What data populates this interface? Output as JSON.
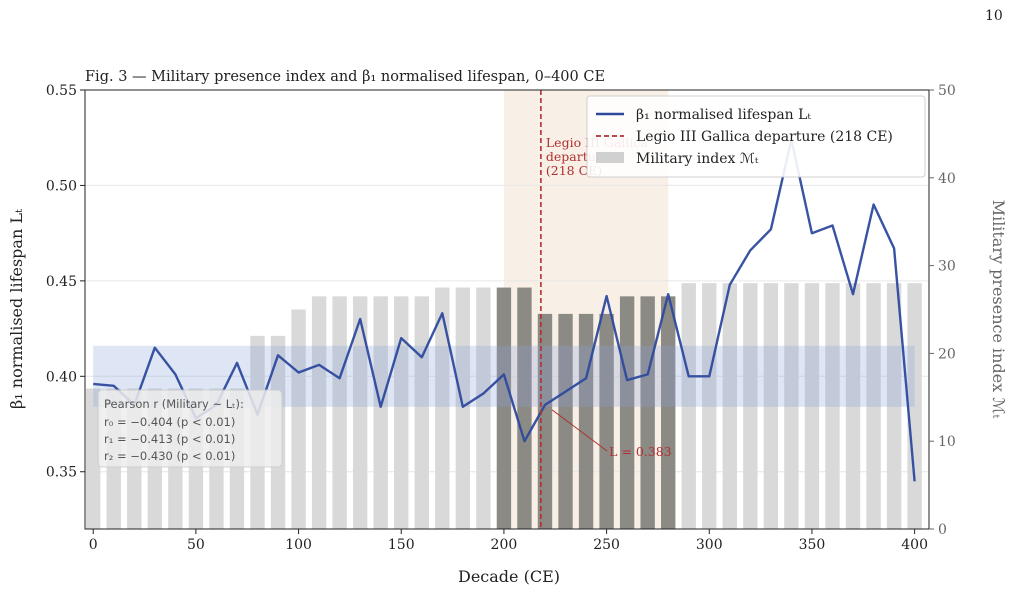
{
  "page_number": "10",
  "chart_data": {
    "type": "line",
    "title": "Fig. 3 — Military presence index and β₁ normalised lifespan, 0–400 CE",
    "xlabel": "Decade (CE)",
    "ylabel": "β₁ normalised lifespan Lₜ",
    "ylabel_right": "Military presence index ℳₜ",
    "xlim": [
      -4,
      407
    ],
    "ylim": [
      0.32,
      0.55
    ],
    "ylim_right": [
      0,
      50
    ],
    "xticks": [
      0,
      50,
      100,
      150,
      200,
      250,
      300,
      350,
      400
    ],
    "yticks": [
      "0.35",
      "0.40",
      "0.45",
      "0.50",
      "0.55"
    ],
    "yticks_right": [
      0,
      10,
      20,
      30,
      40,
      50
    ],
    "grid": "horizontal",
    "legend_position": "top-right",
    "highlight_window": [
      200,
      280
    ],
    "highlight_band": [
      0.384,
      0.416
    ],
    "series": [
      {
        "name": "β₁ normalised lifespan Lₜ",
        "kind": "line",
        "color": "#2e4a9e",
        "x": [
          0,
          10,
          20,
          30,
          40,
          50,
          60,
          70,
          80,
          90,
          100,
          110,
          120,
          130,
          140,
          150,
          160,
          170,
          180,
          190,
          200,
          210,
          220,
          230,
          240,
          250,
          260,
          270,
          280,
          290,
          300,
          310,
          320,
          330,
          340,
          350,
          360,
          370,
          380,
          390,
          400
        ],
        "y": [
          0.396,
          0.395,
          0.385,
          0.415,
          0.401,
          0.378,
          0.385,
          0.407,
          0.38,
          0.411,
          0.402,
          0.406,
          0.399,
          0.43,
          0.384,
          0.42,
          0.41,
          0.433,
          0.384,
          0.391,
          0.401,
          0.366,
          0.385,
          0.392,
          0.399,
          0.442,
          0.398,
          0.401,
          0.443,
          0.4,
          0.4,
          0.448,
          0.466,
          0.477,
          0.524,
          0.475,
          0.479,
          0.443,
          0.49,
          0.467,
          0.345
        ]
      },
      {
        "name": "Military index ℳₜ",
        "kind": "bar",
        "color": "#d9d9d9",
        "highlight_color": "#8c8a85",
        "x": [
          0,
          10,
          20,
          30,
          40,
          50,
          60,
          70,
          80,
          90,
          100,
          110,
          120,
          130,
          140,
          150,
          160,
          170,
          180,
          190,
          200,
          210,
          220,
          230,
          240,
          250,
          260,
          270,
          280,
          290,
          300,
          310,
          320,
          330,
          340,
          350,
          360,
          370,
          380,
          390,
          400
        ],
        "values": [
          16,
          16,
          16,
          16,
          16,
          16,
          16,
          16,
          22,
          22,
          25,
          26.5,
          26.5,
          26.5,
          26.5,
          26.5,
          26.5,
          27.5,
          27.5,
          27.5,
          27.5,
          27.5,
          24.5,
          24.5,
          24.5,
          24.5,
          26.5,
          26.5,
          26.5,
          28,
          28,
          28,
          28,
          28,
          28,
          28,
          28,
          28,
          28,
          28,
          28
        ]
      }
    ],
    "event": {
      "name": "Legio III Gallica departure (218 CE)",
      "x": 218,
      "color": "#b03030",
      "label_lines": [
        "Legio III Gallica",
        "departure",
        "(218 CE)"
      ]
    },
    "annotation": {
      "text": "L = 0.383",
      "x": 222,
      "y": 0.384
    },
    "pearson_box": {
      "title": "Pearson r (Military ~ Lₜ):",
      "lines": [
        "r₀ = −0.404 (p < 0.01)",
        "r₁ = −0.413 (p < 0.01)",
        "r₂ = −0.430 (p < 0.01)"
      ]
    },
    "legend": [
      {
        "label": "β₁ normalised lifespan Lₜ",
        "style": "line"
      },
      {
        "label": "Legio III Gallica departure (218 CE)",
        "style": "dashed"
      },
      {
        "label": "Military index ℳₜ",
        "style": "patch"
      }
    ]
  }
}
